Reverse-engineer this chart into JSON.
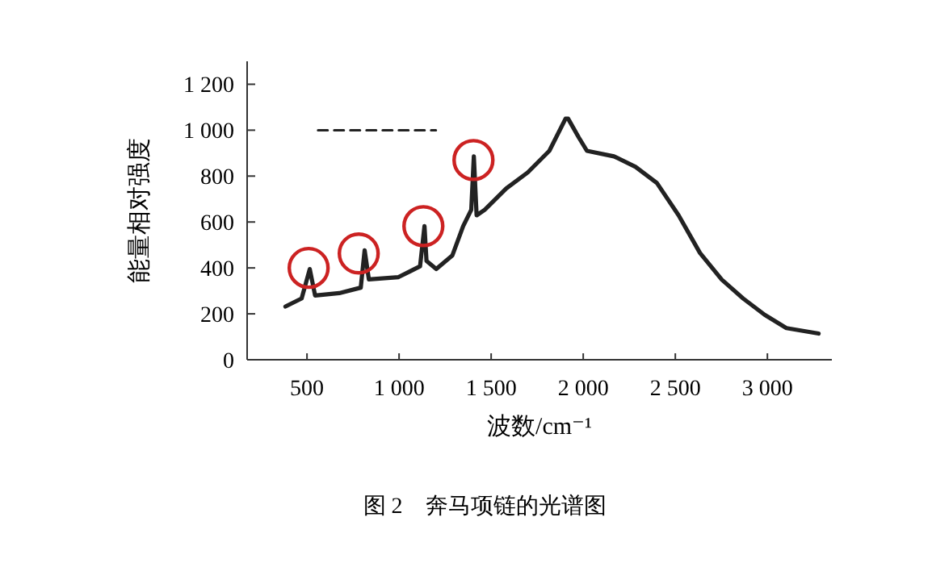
{
  "chart_data": {
    "type": "line",
    "title": "图 2　奔马项链的光谱图",
    "xlabel": "波数/cm⁻¹",
    "ylabel": "能量相对强度",
    "xlim": [
      175,
      3350
    ],
    "ylim": [
      0,
      1300
    ],
    "xticks": [
      500,
      {
        "value": 1000,
        "label": "1 000"
      },
      {
        "value": 1500,
        "label": "1 500"
      },
      {
        "value": 2000,
        "label": "2 000"
      },
      {
        "value": 2500,
        "label": "2 500"
      },
      {
        "value": 3000,
        "label": "3 000"
      }
    ],
    "yticks": [
      0,
      200,
      400,
      600,
      800,
      {
        "value": 1000,
        "label": "1 000"
      },
      {
        "value": 1200,
        "label": "1 200"
      }
    ],
    "grid": false,
    "marker": "none",
    "series": [
      {
        "color": "#222222",
        "line_style": "solid",
        "x": [
          383,
          471,
          515,
          544,
          675,
          792,
          813,
          836,
          997,
          1114,
          1138,
          1149,
          1202,
          1289,
          1348,
          1392,
          1406,
          1421,
          1465,
          1582,
          1699,
          1816,
          1904,
          1918,
          1976,
          2020,
          2167,
          2284,
          2400,
          2518,
          2634,
          2752,
          2868,
          2985,
          3103,
          3278
        ],
        "values": [
          232,
          267,
          395,
          280,
          290,
          314,
          477,
          350,
          360,
          407,
          582,
          430,
          395,
          454,
          582,
          653,
          886,
          629,
          653,
          746,
          816,
          910,
          1050,
          1050,
          968,
          910,
          886,
          840,
          770,
          629,
          465,
          349,
          267,
          196,
          138,
          114
        ]
      },
      {
        "color": "#222222",
        "line_style": "dashed",
        "x": [
          560,
          1200
        ],
        "values": [
          1000,
          1000
        ]
      },
      {
        "type": "scatter",
        "color": "#cc2222",
        "marker": "circle",
        "x": [
          509,
          781,
          1132,
          1404
        ],
        "values": [
          400,
          463,
          582,
          870
        ]
      }
    ]
  }
}
